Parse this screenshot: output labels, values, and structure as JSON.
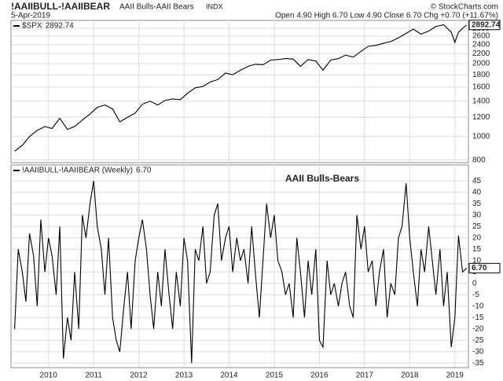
{
  "header": {
    "symbol": "!AAIIBULL-!AAIIBEAR",
    "name": "AAII Bulls-AAII Bears",
    "exchange": "INDX",
    "date": "5-Apr-2019",
    "quote": "Open 4.90 High 6.70 Low 4.90 Close 6.70 Chg +0.70 (+11.67%)",
    "copyright": "© StockCharts.com"
  },
  "chart_data": [
    {
      "type": "line",
      "log": true,
      "grid": true,
      "x": [
        2009.25,
        2009.42,
        2009.58,
        2009.75,
        2009.92,
        2010.08,
        2010.25,
        2010.42,
        2010.58,
        2010.75,
        2010.92,
        2011.08,
        2011.25,
        2011.42,
        2011.58,
        2011.75,
        2011.92,
        2012.08,
        2012.25,
        2012.42,
        2012.58,
        2012.75,
        2012.92,
        2013.08,
        2013.25,
        2013.42,
        2013.58,
        2013.75,
        2013.92,
        2014.08,
        2014.25,
        2014.42,
        2014.58,
        2014.75,
        2014.92,
        2015.08,
        2015.25,
        2015.42,
        2015.58,
        2015.75,
        2015.92,
        2016.08,
        2016.25,
        2016.42,
        2016.58,
        2016.75,
        2016.92,
        2017.08,
        2017.25,
        2017.42,
        2017.58,
        2017.75,
        2017.92,
        2018.08,
        2018.25,
        2018.42,
        2018.58,
        2018.75,
        2018.92,
        2019.0,
        2019.08,
        2019.17,
        2019.26
      ],
      "series": [
        {
          "name": "$SPX",
          "color": "#000000",
          "values": [
            870,
            920,
            1000,
            1060,
            1100,
            1080,
            1190,
            1070,
            1100,
            1170,
            1240,
            1320,
            1350,
            1300,
            1150,
            1200,
            1250,
            1360,
            1400,
            1350,
            1410,
            1430,
            1420,
            1510,
            1590,
            1610,
            1680,
            1720,
            1830,
            1800,
            1880,
            1950,
            1990,
            1980,
            2070,
            2080,
            2100,
            2090,
            1950,
            2080,
            2050,
            1880,
            2070,
            2100,
            2170,
            2130,
            2250,
            2360,
            2380,
            2430,
            2470,
            2560,
            2670,
            2780,
            2650,
            2730,
            2850,
            2900,
            2700,
            2450,
            2700,
            2800,
            2892.74
          ]
        }
      ],
      "xlim": [
        2009.17,
        2019.3
      ],
      "xticks": [
        2010,
        2011,
        2012,
        2013,
        2014,
        2015,
        2016,
        2017,
        2018,
        2019
      ],
      "ylim": [
        780,
        3020
      ],
      "yticks": [
        800,
        1000,
        1200,
        1400,
        1600,
        1800,
        2000,
        2200,
        2400,
        2600,
        2800
      ]
    },
    {
      "type": "line",
      "grid": true,
      "annotation": "AAII Bulls-Bears",
      "last_value_label": "6.70",
      "x": [
        2009.25,
        2009.33,
        2009.42,
        2009.5,
        2009.58,
        2009.67,
        2009.75,
        2009.83,
        2009.92,
        2010.0,
        2010.08,
        2010.17,
        2010.25,
        2010.33,
        2010.42,
        2010.5,
        2010.58,
        2010.67,
        2010.75,
        2010.83,
        2010.92,
        2011.0,
        2011.08,
        2011.17,
        2011.25,
        2011.33,
        2011.42,
        2011.5,
        2011.58,
        2011.67,
        2011.75,
        2011.83,
        2011.92,
        2012.0,
        2012.08,
        2012.17,
        2012.25,
        2012.33,
        2012.42,
        2012.5,
        2012.58,
        2012.67,
        2012.75,
        2012.83,
        2012.92,
        2013.0,
        2013.08,
        2013.17,
        2013.25,
        2013.33,
        2013.42,
        2013.5,
        2013.58,
        2013.67,
        2013.75,
        2013.83,
        2013.92,
        2014.0,
        2014.08,
        2014.17,
        2014.25,
        2014.33,
        2014.42,
        2014.5,
        2014.58,
        2014.67,
        2014.75,
        2014.83,
        2014.92,
        2015.0,
        2015.08,
        2015.17,
        2015.25,
        2015.33,
        2015.42,
        2015.5,
        2015.58,
        2015.67,
        2015.75,
        2015.83,
        2015.92,
        2016.0,
        2016.08,
        2016.17,
        2016.25,
        2016.33,
        2016.42,
        2016.5,
        2016.58,
        2016.67,
        2016.75,
        2016.83,
        2016.92,
        2017.0,
        2017.08,
        2017.17,
        2017.25,
        2017.33,
        2017.42,
        2017.5,
        2017.58,
        2017.67,
        2017.75,
        2017.83,
        2017.92,
        2018.0,
        2018.08,
        2018.17,
        2018.25,
        2018.33,
        2018.42,
        2018.5,
        2018.58,
        2018.67,
        2018.75,
        2018.83,
        2018.92,
        2019.0,
        2019.08,
        2019.17,
        2019.26
      ],
      "series": [
        {
          "name": "!AAIIBULL-!AAIIBEAR (Weekly)",
          "color": "#000000",
          "values": [
            -20,
            15,
            5,
            -8,
            22,
            12,
            -10,
            28,
            5,
            20,
            12,
            -5,
            25,
            -33,
            -15,
            -25,
            5,
            -20,
            30,
            20,
            35,
            45,
            25,
            15,
            -5,
            20,
            -15,
            -25,
            -30,
            -10,
            5,
            -20,
            10,
            20,
            28,
            15,
            -5,
            -20,
            5,
            -10,
            15,
            -5,
            -20,
            5,
            -10,
            20,
            10,
            -35,
            15,
            10,
            25,
            0,
            5,
            30,
            35,
            10,
            20,
            25,
            5,
            20,
            10,
            15,
            0,
            25,
            5,
            -15,
            10,
            35,
            20,
            30,
            10,
            5,
            -5,
            0,
            -15,
            20,
            5,
            -15,
            10,
            -5,
            15,
            -25,
            -28,
            10,
            -5,
            0,
            -10,
            0,
            5,
            -10,
            -15,
            30,
            15,
            25,
            5,
            10,
            -10,
            5,
            15,
            -15,
            0,
            -5,
            20,
            25,
            44,
            20,
            5,
            -10,
            15,
            5,
            25,
            10,
            -5,
            15,
            -10,
            5,
            -28,
            -15,
            21,
            5,
            6.7
          ]
        }
      ],
      "xlim": [
        2009.17,
        2019.3
      ],
      "xticks": [
        2010,
        2011,
        2012,
        2013,
        2014,
        2015,
        2016,
        2017,
        2018,
        2019
      ],
      "ylim": [
        -37,
        52
      ],
      "yticks": [
        -35,
        -30,
        -25,
        -20,
        -15,
        -10,
        -5,
        0,
        5,
        10,
        15,
        20,
        25,
        30,
        35,
        40,
        45
      ]
    }
  ]
}
